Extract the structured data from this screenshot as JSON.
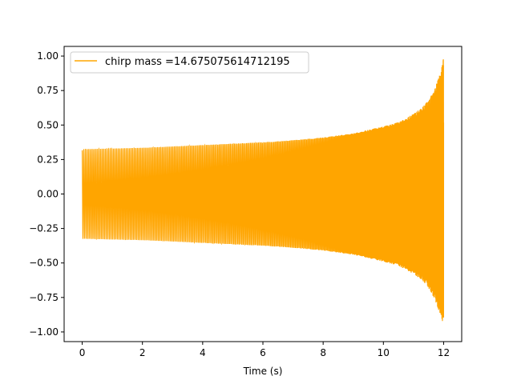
{
  "chart_data": {
    "type": "line",
    "xlabel": "Time (s)",
    "ylabel": "",
    "xlim": [
      -0.6,
      12.6
    ],
    "ylim": [
      -1.07,
      1.07
    ],
    "x_ticks": [
      0,
      2,
      4,
      6,
      8,
      10,
      12
    ],
    "x_tick_labels": [
      "0",
      "2",
      "4",
      "6",
      "8",
      "10",
      "12"
    ],
    "y_ticks": [
      -1.0,
      -0.75,
      -0.5,
      -0.25,
      0.0,
      0.25,
      0.5,
      0.75,
      1.0
    ],
    "y_tick_labels": [
      "−1.00",
      "−0.75",
      "−0.50",
      "−0.25",
      "0.00",
      "0.25",
      "0.50",
      "0.75",
      "1.00"
    ],
    "grid": false,
    "legend_position": "top-left",
    "series": [
      {
        "name": "chirp mass =14.675075614712195",
        "color": "#ffa500",
        "envelope": {
          "x": [
            0,
            1,
            2,
            3,
            4,
            5,
            6,
            7,
            8,
            9,
            10,
            10.5,
            11,
            11.3,
            11.5,
            11.7,
            11.85,
            11.95,
            12.0
          ],
          "upper": [
            0.325,
            0.33,
            0.335,
            0.345,
            0.355,
            0.365,
            0.375,
            0.39,
            0.41,
            0.44,
            0.49,
            0.52,
            0.58,
            0.63,
            0.68,
            0.76,
            0.85,
            0.93,
            1.0
          ],
          "lower": [
            -0.325,
            -0.33,
            -0.335,
            -0.345,
            -0.355,
            -0.365,
            -0.375,
            -0.39,
            -0.41,
            -0.44,
            -0.49,
            -0.52,
            -0.58,
            -0.63,
            -0.68,
            -0.76,
            -0.85,
            -0.91,
            -0.97
          ]
        }
      }
    ]
  }
}
